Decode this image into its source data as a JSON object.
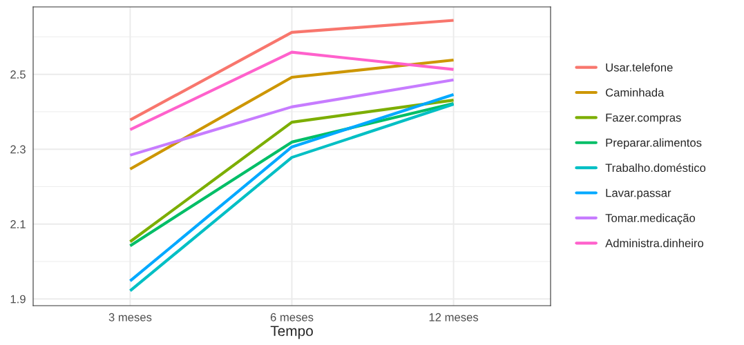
{
  "chart_data": {
    "type": "line",
    "xlabel": "Tempo",
    "categories": [
      "3 meses",
      "6 meses",
      "12 meses"
    ],
    "series": [
      {
        "name": "Usar.telefone",
        "color": "#f8766d",
        "values": [
          2.378,
          2.612,
          2.644
        ]
      },
      {
        "name": "Caminhada",
        "color": "#cd9600",
        "values": [
          2.247,
          2.492,
          2.538
        ]
      },
      {
        "name": "Fazer.compras",
        "color": "#7cae00",
        "values": [
          2.053,
          2.372,
          2.431
        ]
      },
      {
        "name": "Preparar.alimentos",
        "color": "#00be67",
        "values": [
          2.042,
          2.319,
          2.422
        ]
      },
      {
        "name": "Trabalho.doméstico",
        "color": "#00bfc4",
        "values": [
          1.922,
          2.278,
          2.42
        ]
      },
      {
        "name": "Lavar.passar",
        "color": "#00a9ff",
        "values": [
          1.948,
          2.306,
          2.446
        ]
      },
      {
        "name": "Tomar.medicação",
        "color": "#c77cff",
        "values": [
          2.284,
          2.413,
          2.485
        ]
      },
      {
        "name": "Administra.dinheiro",
        "color": "#ff61cc",
        "values": [
          2.352,
          2.559,
          2.513
        ]
      }
    ],
    "ylim": [
      1.882,
      2.68
    ],
    "yticks": [
      1.9,
      2.1,
      2.3,
      2.5
    ],
    "grid": true,
    "legend": "right",
    "marker": "none",
    "line_style": "solid"
  }
}
